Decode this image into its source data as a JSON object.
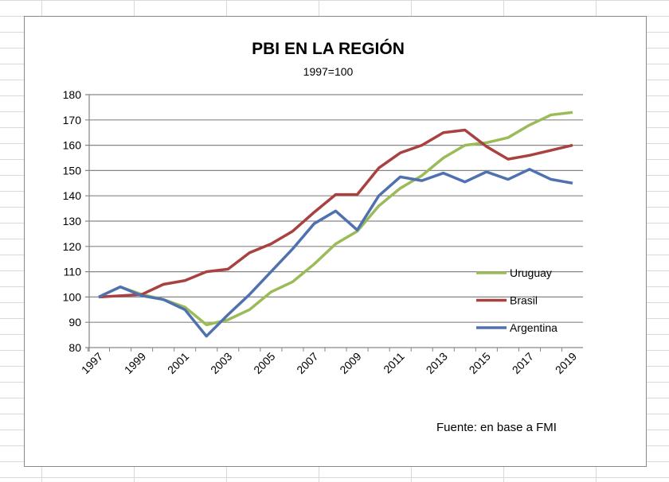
{
  "chart_data": {
    "type": "line",
    "title": "PBI EN LA REGIÓN",
    "subtitle": "1997=100",
    "source": "Fuente: en base a FMI",
    "x": [
      1997,
      1998,
      1999,
      2000,
      2001,
      2002,
      2003,
      2004,
      2005,
      2006,
      2007,
      2008,
      2009,
      2010,
      2011,
      2012,
      2013,
      2014,
      2015,
      2016,
      2017,
      2018,
      2019
    ],
    "x_tick_labels": [
      "1997",
      "1999",
      "2001",
      "2003",
      "2005",
      "2007",
      "2009",
      "2011",
      "2013",
      "2015",
      "2017",
      "2019"
    ],
    "y_tick_labels": [
      "80",
      "90",
      "100",
      "110",
      "120",
      "130",
      "140",
      "150",
      "160",
      "170",
      "180"
    ],
    "ylim": [
      80,
      180
    ],
    "grid": true,
    "legend_position": "right",
    "series": [
      {
        "name": "Uruguay",
        "color": "#9bbb59",
        "values": [
          100,
          104,
          101,
          99,
          96,
          89,
          91,
          95,
          102,
          106,
          113,
          121,
          126,
          136,
          143,
          148,
          155,
          160,
          161,
          163,
          168,
          172,
          173
        ]
      },
      {
        "name": "Brasil",
        "color": "#a8413f",
        "values": [
          100,
          100.5,
          101,
          105,
          106.5,
          110,
          111,
          117.5,
          121,
          126,
          133.5,
          140.5,
          140.5,
          151,
          157,
          160,
          165,
          166,
          159.5,
          154.5,
          156,
          158,
          160
        ]
      },
      {
        "name": "Argentina",
        "color": "#4f71b0",
        "values": [
          100,
          104,
          100.5,
          99,
          95,
          84.5,
          93,
          101,
          110,
          119,
          129,
          134,
          126.5,
          140,
          147.5,
          146,
          149,
          145.5,
          149.5,
          146.5,
          150.5,
          146.5,
          145
        ]
      }
    ]
  }
}
